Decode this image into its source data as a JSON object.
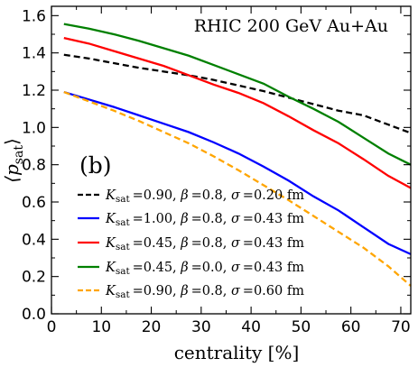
{
  "chart_data": {
    "type": "line",
    "title": "",
    "annotation": "RHIC 200 GeV Au+Au",
    "panel_label": "(b)",
    "xlabel": "centrality [%]",
    "ylabel": "⟨p_sat⟩",
    "xlim": [
      0,
      72
    ],
    "ylim": [
      0.0,
      1.65
    ],
    "xticks": [
      0,
      10,
      20,
      30,
      40,
      50,
      60,
      70
    ],
    "yticks": [
      0.0,
      0.2,
      0.4,
      0.6,
      0.8,
      1.0,
      1.2,
      1.4,
      1.6
    ],
    "grid": false,
    "legend_position": "lower-left",
    "x": [
      2.5,
      7.5,
      12.5,
      17.5,
      22.5,
      27.5,
      32.5,
      37.5,
      42.5,
      47.5,
      52.5,
      57.5,
      62.5,
      67.5,
      72
    ],
    "series": [
      {
        "name": "K_sat=0.90, β=0.8, σ=0.20 fm",
        "color": "#000000",
        "dash": "dashed",
        "values": [
          1.39,
          1.37,
          1.345,
          1.32,
          1.3,
          1.28,
          1.255,
          1.225,
          1.195,
          1.16,
          1.125,
          1.09,
          1.065,
          1.015,
          0.97
        ]
      },
      {
        "name": "K_sat=1.00, β=0.8, σ=0.43 fm",
        "color": "#0000ff",
        "dash": "solid",
        "values": [
          1.19,
          1.15,
          1.11,
          1.065,
          1.02,
          0.975,
          0.92,
          0.86,
          0.79,
          0.715,
          0.63,
          0.555,
          0.465,
          0.375,
          0.32
        ]
      },
      {
        "name": "K_sat=0.45, β=0.8, σ=0.43 fm",
        "color": "#ff0000",
        "dash": "solid",
        "values": [
          1.48,
          1.45,
          1.41,
          1.37,
          1.33,
          1.28,
          1.23,
          1.185,
          1.13,
          1.06,
          0.985,
          0.915,
          0.83,
          0.74,
          0.675
        ]
      },
      {
        "name": "K_sat=0.45, β=0.0, σ=0.43 fm",
        "color": "#008000",
        "dash": "solid",
        "values": [
          1.555,
          1.53,
          1.5,
          1.465,
          1.425,
          1.385,
          1.335,
          1.285,
          1.235,
          1.165,
          1.1,
          1.03,
          0.945,
          0.86,
          0.8
        ]
      },
      {
        "name": "K_sat=0.90, β=0.8, σ=0.60 fm",
        "color": "#ffa500",
        "dash": "dashed",
        "values": [
          1.19,
          1.14,
          1.09,
          1.035,
          0.975,
          0.915,
          0.845,
          0.77,
          0.69,
          0.61,
          0.525,
          0.44,
          0.355,
          0.255,
          0.15
        ]
      }
    ],
    "legend_entries": [
      {
        "k": "0.90",
        "beta": "0.8",
        "sigma": "0.20"
      },
      {
        "k": "1.00",
        "beta": "0.8",
        "sigma": "0.43"
      },
      {
        "k": "0.45",
        "beta": "0.8",
        "sigma": "0.43"
      },
      {
        "k": "0.45",
        "beta": "0.0",
        "sigma": "0.43"
      },
      {
        "k": "0.90",
        "beta": "0.8",
        "sigma": "0.60"
      }
    ]
  }
}
